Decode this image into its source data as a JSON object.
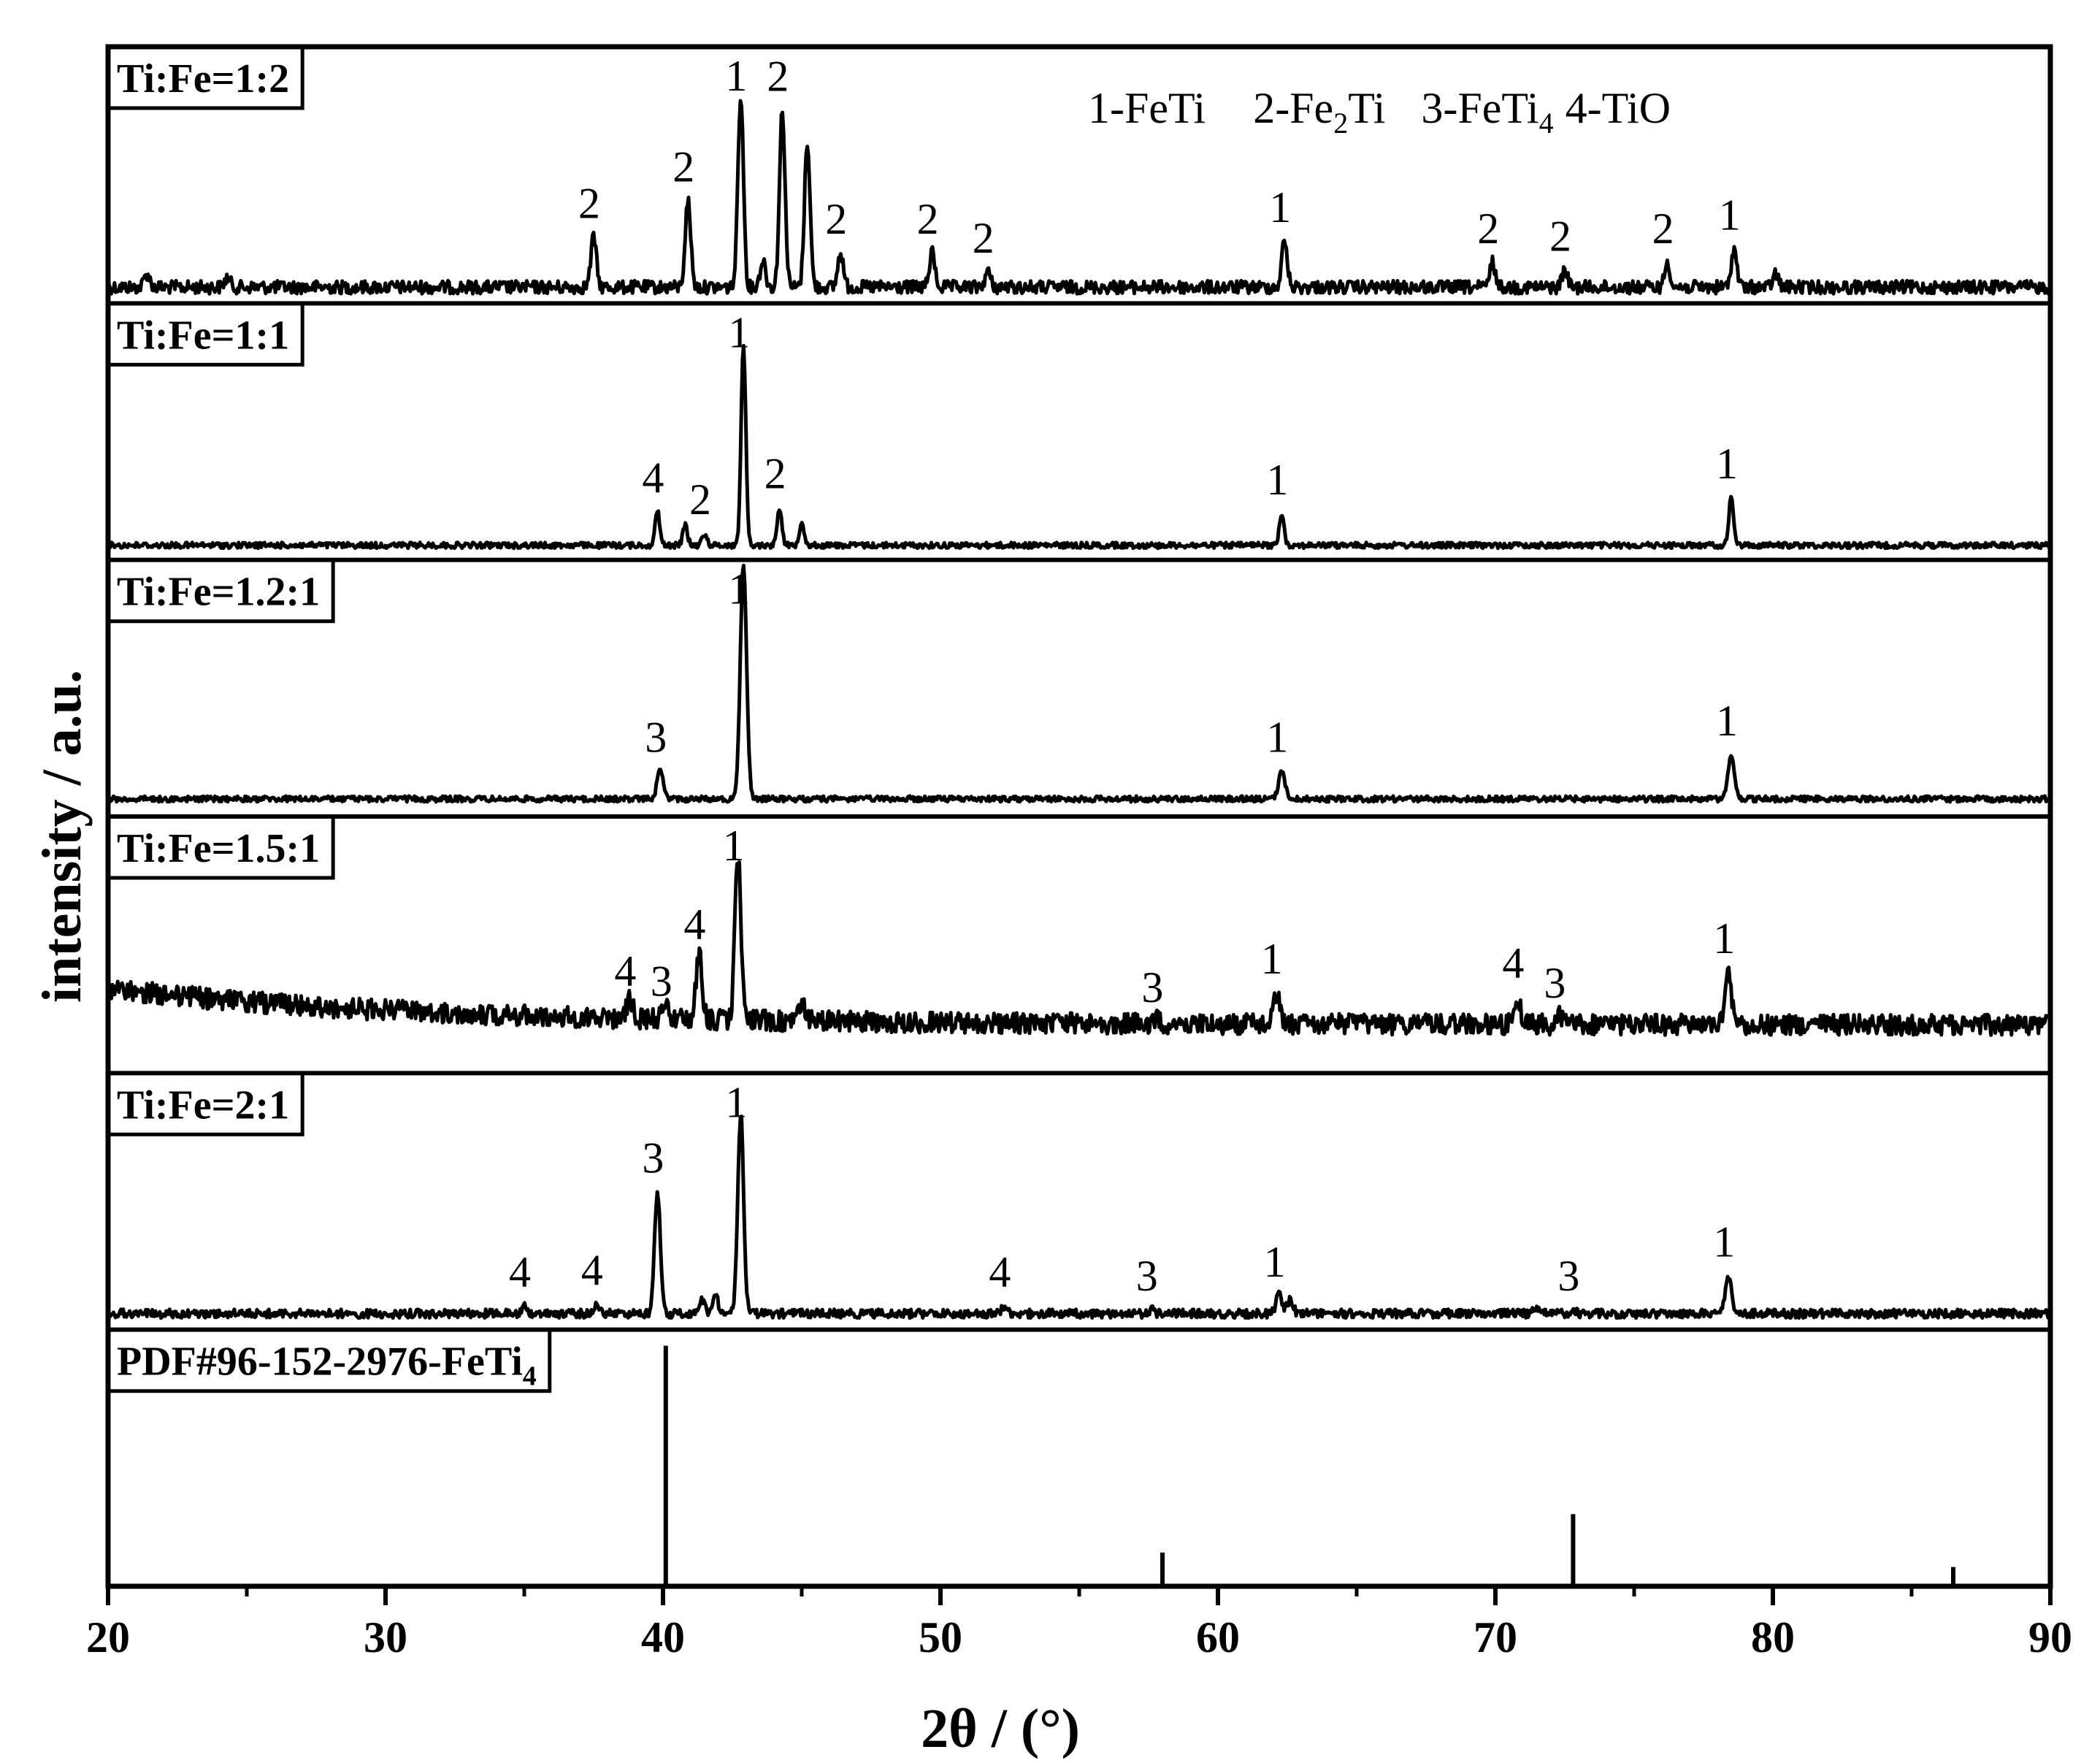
{
  "chart_data": {
    "type": "line",
    "title": "",
    "xlabel": "2θ /  (°)",
    "ylabel": "intensity / a.u.",
    "xlim": [
      20,
      90
    ],
    "x_ticks": [
      "20",
      "30",
      "40",
      "50",
      "60",
      "70",
      "80",
      "90"
    ],
    "legend_text": {
      "l1": "1-FeTi",
      "l2a": "2-Fe",
      "l2sub": "2",
      "l2b": "Ti",
      "l3a": "3-FeTi",
      "l3sub": "4",
      "l3b": "4-TiO"
    },
    "phase_legend": [
      "1-FeTi",
      "2-Fe2Ti",
      "3-FeTi4",
      "4-TiO"
    ],
    "series": [
      {
        "name": "Ti:Fe=1:2",
        "peaks": [
          {
            "x": 21.4,
            "h": 0.07
          },
          {
            "x": 24.3,
            "h": 0.05
          },
          {
            "x": 37.5,
            "h": 0.26,
            "label": "2"
          },
          {
            "x": 40.9,
            "h": 0.45,
            "label": "2"
          },
          {
            "x": 42.8,
            "h": 1.0,
            "label": "1"
          },
          {
            "x": 43.6,
            "h": 0.14
          },
          {
            "x": 44.3,
            "h": 0.92,
            "label": "2"
          },
          {
            "x": 45.2,
            "h": 0.76
          },
          {
            "x": 46.4,
            "h": 0.18,
            "label": "2"
          },
          {
            "x": 49.7,
            "h": 0.18,
            "label": "2"
          },
          {
            "x": 51.7,
            "h": 0.08,
            "label": "2"
          },
          {
            "x": 62.4,
            "h": 0.24,
            "label": "1"
          },
          {
            "x": 69.9,
            "h": 0.13,
            "label": "2"
          },
          {
            "x": 72.5,
            "h": 0.09,
            "label": "2"
          },
          {
            "x": 76.2,
            "h": 0.13,
            "label": "2"
          },
          {
            "x": 78.6,
            "h": 0.2,
            "label": "1"
          },
          {
            "x": 80.1,
            "h": 0.07
          }
        ]
      },
      {
        "name": "Ti:Fe=1:1",
        "peaks": [
          {
            "x": 39.8,
            "h": 0.17,
            "label": "4"
          },
          {
            "x": 40.8,
            "h": 0.1
          },
          {
            "x": 41.5,
            "h": 0.06,
            "label": "2"
          },
          {
            "x": 42.9,
            "h": 1.0,
            "label": "1"
          },
          {
            "x": 44.2,
            "h": 0.19,
            "label": "2"
          },
          {
            "x": 45.0,
            "h": 0.12
          },
          {
            "x": 62.3,
            "h": 0.16,
            "label": "1"
          },
          {
            "x": 78.5,
            "h": 0.24,
            "label": "1"
          }
        ]
      },
      {
        "name": "Ti:Fe=1.2:1",
        "peaks": [
          {
            "x": 39.9,
            "h": 0.12,
            "label": "3"
          },
          {
            "x": 42.9,
            "h": 1.0,
            "label": "1"
          },
          {
            "x": 62.3,
            "h": 0.12,
            "label": "1"
          },
          {
            "x": 78.5,
            "h": 0.19,
            "label": "1"
          }
        ]
      },
      {
        "name": "Ti:Fe=1.5:1",
        "peaks": [
          {
            "x": 38.8,
            "h": 0.1,
            "label": "4"
          },
          {
            "x": 40.1,
            "h": 0.05,
            "label": "3"
          },
          {
            "x": 41.3,
            "h": 0.33,
            "label": "4"
          },
          {
            "x": 42.7,
            "h": 0.82,
            "label": "1"
          },
          {
            "x": 45.0,
            "h": 0.1
          },
          {
            "x": 57.8,
            "h": 0.02,
            "label": "3"
          },
          {
            "x": 62.1,
            "h": 0.16,
            "label": "1"
          },
          {
            "x": 70.8,
            "h": 0.14,
            "label": "4"
          },
          {
            "x": 72.3,
            "h": 0.04,
            "label": "3"
          },
          {
            "x": 78.4,
            "h": 0.26,
            "label": "1"
          }
        ]
      },
      {
        "name": "Ti:Fe=2:1",
        "peaks": [
          {
            "x": 35.0,
            "h": 0.04,
            "label": "4"
          },
          {
            "x": 37.6,
            "h": 0.05,
            "label": "4"
          },
          {
            "x": 39.8,
            "h": 0.61,
            "label": "3"
          },
          {
            "x": 41.4,
            "h": 0.07
          },
          {
            "x": 41.9,
            "h": 0.08
          },
          {
            "x": 42.8,
            "h": 1.0,
            "label": "1"
          },
          {
            "x": 52.3,
            "h": 0.04,
            "label": "4"
          },
          {
            "x": 57.6,
            "h": 0.02,
            "label": "3"
          },
          {
            "x": 62.2,
            "h": 0.09,
            "label": "1"
          },
          {
            "x": 62.6,
            "h": 0.07
          },
          {
            "x": 71.4,
            "h": 0.03
          },
          {
            "x": 72.8,
            "h": 0.02,
            "label": "3"
          },
          {
            "x": 78.4,
            "h": 0.19,
            "label": "1"
          }
        ]
      },
      {
        "name": "PDF#96-152-2976-FeTi",
        "name_sub": "4",
        "type": "stick",
        "sticks": [
          {
            "x": 40.1,
            "h": 1.0
          },
          {
            "x": 58.0,
            "h": 0.14
          },
          {
            "x": 72.8,
            "h": 0.3
          },
          {
            "x": 86.5,
            "h": 0.08
          }
        ]
      }
    ]
  }
}
